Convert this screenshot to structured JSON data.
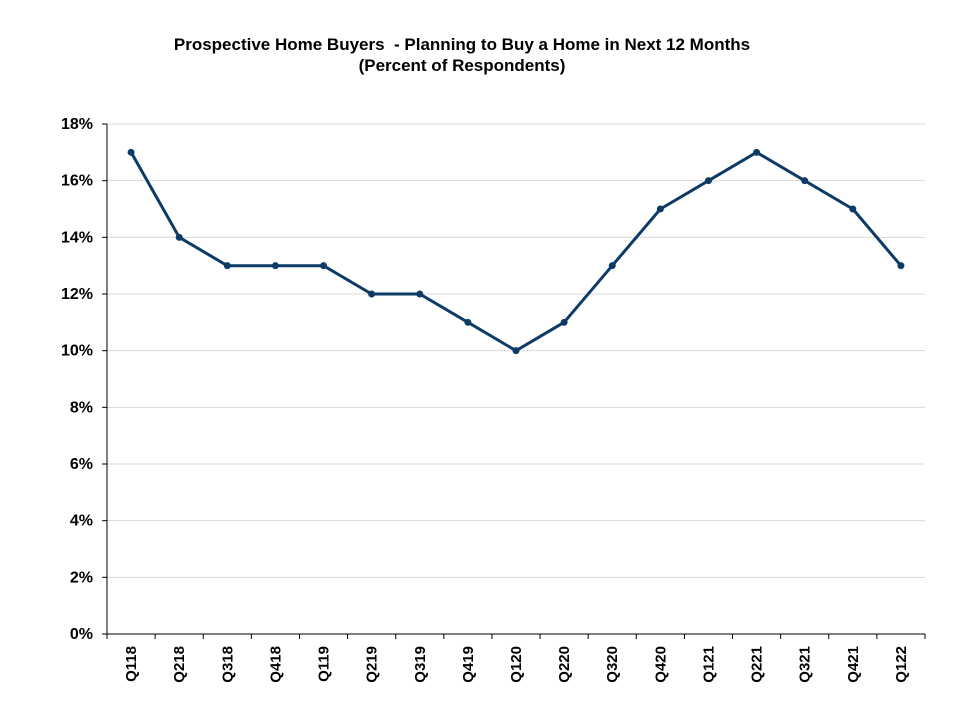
{
  "chart_data": {
    "type": "line",
    "title": "Prospective Home Buyers  - Planning to Buy a Home in Next 12 Months",
    "subtitle": "(Percent of Respondents)",
    "xlabel": "",
    "ylabel": "",
    "categories": [
      "Q118",
      "Q218",
      "Q318",
      "Q418",
      "Q119",
      "Q219",
      "Q319",
      "Q419",
      "Q120",
      "Q220",
      "Q320",
      "Q420",
      "Q121",
      "Q221",
      "Q321",
      "Q421",
      "Q122"
    ],
    "series": [
      {
        "values": [
          17,
          14,
          13,
          13,
          13,
          12,
          12,
          11,
          10,
          11,
          13,
          15,
          16,
          17,
          16,
          15,
          13
        ]
      }
    ],
    "ylim": [
      0,
      18
    ],
    "yticks": [
      0,
      2,
      4,
      6,
      8,
      10,
      12,
      14,
      16,
      18
    ],
    "ytick_labels": [
      "0%",
      "2%",
      "4%",
      "6%",
      "8%",
      "10%",
      "12%",
      "14%",
      "16%",
      "18%"
    ],
    "grid": "horizontal",
    "legend": "none",
    "colors": {
      "line": "#0d3b66",
      "grid": "#d9d9d9",
      "axis": "#000000"
    }
  }
}
